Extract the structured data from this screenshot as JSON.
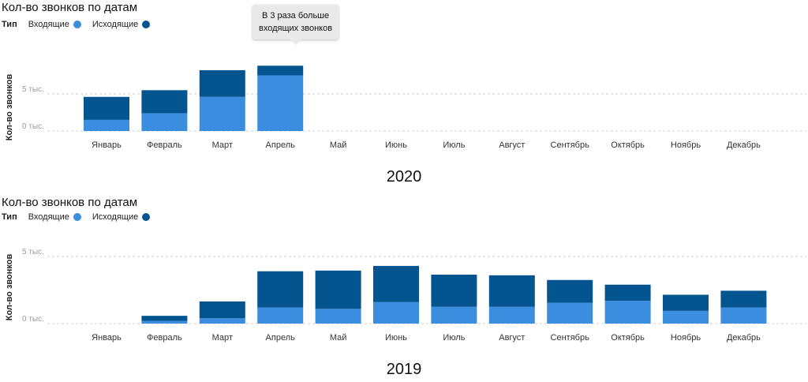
{
  "colors": {
    "incoming": "#3b8de0",
    "outgoing": "#03548f",
    "grid": "#cfcfcf",
    "tick": "#9a9a9a"
  },
  "panels": [
    {
      "title": "Кол-во звонков по датам",
      "year": "2020",
      "legend": {
        "title": "Тип",
        "incoming": "Входящие",
        "outgoing": "Исходящие"
      },
      "callout": {
        "line1": "В 3 раза больше",
        "line2": "входящих звонков"
      },
      "chart_data": {
        "type": "bar",
        "stacked": true,
        "ylabel": "Кол-во звонков",
        "y_ticks": [
          {
            "value": 0,
            "label": "0 тыс."
          },
          {
            "value": 5000,
            "label": "5 тыс."
          }
        ],
        "ylim": [
          0,
          8800
        ],
        "categories": [
          "Январь",
          "Февраль",
          "Март",
          "Апрель",
          "Май",
          "Июнь",
          "Июль",
          "Август",
          "Сентябрь",
          "Октябрь",
          "Ноябрь",
          "Декабрь"
        ],
        "series": [
          {
            "name": "Входящие",
            "values": [
              1500,
              2400,
              4600,
              7500,
              null,
              null,
              null,
              null,
              null,
              null,
              null,
              null
            ]
          },
          {
            "name": "Исходящие",
            "values": [
              3100,
              3100,
              3600,
              1300,
              null,
              null,
              null,
              null,
              null,
              null,
              null,
              null
            ]
          }
        ],
        "grid": true
      }
    },
    {
      "title": "Кол-во звонков по датам",
      "year": "2019",
      "legend": {
        "title": "Тип",
        "incoming": "Входящие",
        "outgoing": "Исходящие"
      },
      "chart_data": {
        "type": "bar",
        "stacked": true,
        "ylabel": "Кол-во звонков",
        "y_ticks": [
          {
            "value": 0,
            "label": "0 тыс."
          },
          {
            "value": 5000,
            "label": "5 тыс."
          }
        ],
        "ylim": [
          0,
          5200
        ],
        "categories": [
          "Январь",
          "Февраль",
          "Март",
          "Апрель",
          "Май",
          "Июнь",
          "Июль",
          "Август",
          "Сентябрь",
          "Октябрь",
          "Ноябрь",
          "Декабрь"
        ],
        "series": [
          {
            "name": "Входящие",
            "values": [
              null,
              200,
              400,
              1200,
              1100,
              1600,
              1250,
              1250,
              1550,
              1700,
              950,
              1200
            ]
          },
          {
            "name": "Исходящие",
            "values": [
              null,
              380,
              1250,
              2700,
              2850,
              2700,
              2400,
              2350,
              1700,
              1200,
              1200,
              1250
            ]
          }
        ],
        "grid": true
      }
    }
  ]
}
